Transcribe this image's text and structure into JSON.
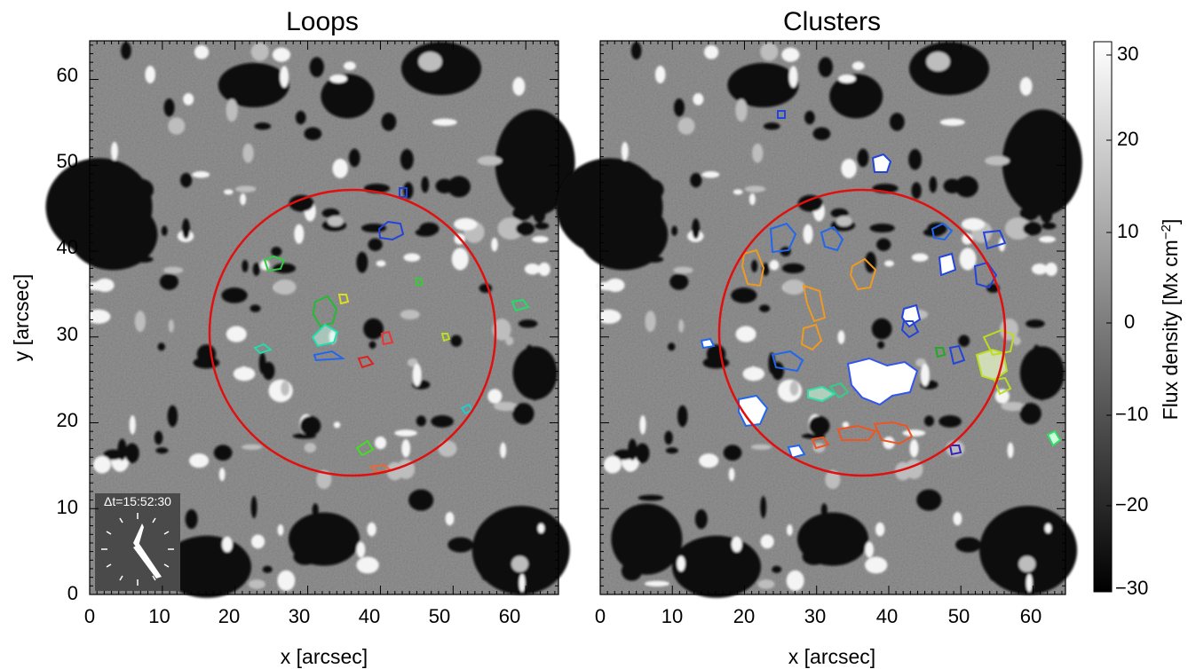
{
  "panels": [
    {
      "title": "Loops",
      "xlabel": "x [arcsec]",
      "ylabel": "y [arcsec]",
      "xticks": [
        "0",
        "10",
        "20",
        "30",
        "40",
        "50",
        "60"
      ],
      "yticks": [
        "0",
        "10",
        "20",
        "30",
        "40",
        "50",
        "60"
      ]
    },
    {
      "title": "Clusters",
      "xlabel": "x [arcsec]",
      "xticks": [
        "0",
        "10",
        "20",
        "30",
        "40",
        "50",
        "60"
      ]
    }
  ],
  "colorbar": {
    "label": "Flux density [Mx cm",
    "label_sup": "−2",
    "label_end": "]",
    "ticks": [
      "30",
      "20",
      "10",
      "0",
      "−10",
      "−20",
      "−30"
    ]
  },
  "clock": {
    "label": "Δt=15:52:30"
  },
  "chart_data": {
    "type": "heatmap",
    "xrange": [
      0,
      64
    ],
    "yrange": [
      0,
      64
    ],
    "units": "arcsec",
    "colorbar_range": [
      -30,
      30
    ],
    "circle": {
      "center": [
        36,
        30.5
      ],
      "radius": 16.5,
      "color": "#e01010"
    },
    "colors": {
      "circle": "#e01010",
      "background": "#ffffff"
    }
  }
}
